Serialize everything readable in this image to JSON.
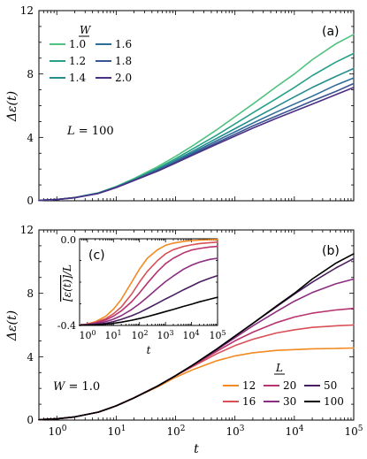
{
  "chart_data": [
    {
      "type": "line",
      "panel_label": "(a)",
      "xlabel": "",
      "ylabel": "Δε(t)",
      "xscale": "log",
      "xlim": [
        0.5,
        100000
      ],
      "ylim": [
        0,
        12
      ],
      "xticks": [
        "10^0",
        "10^1",
        "10^2",
        "10^3",
        "10^4",
        "10^5"
      ],
      "xtick_labels_shown": false,
      "yticks": [
        "0",
        "4",
        "8",
        "12"
      ],
      "annotation": "L = 100",
      "legend_title": "W",
      "legend_position": "top-left",
      "x": [
        0.5,
        1,
        2,
        5,
        10,
        20,
        50,
        100,
        200,
        500,
        1000,
        2000,
        5000,
        10000,
        20000,
        50000,
        100000
      ],
      "series": [
        {
          "name": "1.0",
          "color": "#4fc27f",
          "values": [
            0.03,
            0.08,
            0.2,
            0.5,
            0.9,
            1.4,
            2.15,
            2.8,
            3.5,
            4.5,
            5.3,
            6.1,
            7.2,
            8.0,
            8.9,
            9.9,
            10.5
          ]
        },
        {
          "name": "1.2",
          "color": "#27a088",
          "values": [
            0.03,
            0.08,
            0.2,
            0.49,
            0.88,
            1.35,
            2.05,
            2.65,
            3.3,
            4.15,
            4.85,
            5.55,
            6.45,
            7.15,
            7.9,
            8.75,
            9.3
          ]
        },
        {
          "name": "1.4",
          "color": "#268d8f",
          "values": [
            0.03,
            0.08,
            0.2,
            0.48,
            0.86,
            1.32,
            1.98,
            2.55,
            3.15,
            3.95,
            4.55,
            5.15,
            5.95,
            6.55,
            7.15,
            7.85,
            8.35
          ]
        },
        {
          "name": "1.6",
          "color": "#2e6d9a",
          "values": [
            0.03,
            0.08,
            0.19,
            0.47,
            0.85,
            1.3,
            1.93,
            2.48,
            3.05,
            3.8,
            4.35,
            4.9,
            5.6,
            6.1,
            6.6,
            7.3,
            7.75
          ]
        },
        {
          "name": "1.8",
          "color": "#3a5593",
          "values": [
            0.03,
            0.08,
            0.19,
            0.47,
            0.84,
            1.29,
            1.9,
            2.42,
            2.97,
            3.68,
            4.2,
            4.72,
            5.35,
            5.82,
            6.3,
            6.9,
            7.4
          ]
        },
        {
          "name": "2.0",
          "color": "#4b2f85",
          "values": [
            0.03,
            0.08,
            0.19,
            0.46,
            0.83,
            1.28,
            1.87,
            2.38,
            2.9,
            3.58,
            4.08,
            4.58,
            5.2,
            5.65,
            6.1,
            6.7,
            7.15
          ]
        }
      ]
    },
    {
      "type": "line",
      "panel_label": "(b)",
      "xlabel": "t",
      "ylabel": "Δε(t)",
      "xscale": "log",
      "xlim": [
        0.5,
        100000
      ],
      "ylim": [
        0,
        12
      ],
      "xticks": [
        "10^0",
        "10^1",
        "10^2",
        "10^3",
        "10^4",
        "10^5"
      ],
      "yticks": [
        "0",
        "4",
        "8",
        "12"
      ],
      "annotation": "W = 1.0",
      "legend_title": "L",
      "legend_position": "bottom-right",
      "x": [
        0.5,
        1,
        2,
        5,
        10,
        20,
        50,
        100,
        200,
        500,
        1000,
        2000,
        5000,
        10000,
        20000,
        50000,
        100000
      ],
      "series": [
        {
          "name": "12",
          "color": "#f28a21",
          "values": [
            0.03,
            0.08,
            0.2,
            0.5,
            0.9,
            1.4,
            2.1,
            2.7,
            3.2,
            3.75,
            4.05,
            4.25,
            4.4,
            4.45,
            4.5,
            4.52,
            4.55
          ]
        },
        {
          "name": "16",
          "color": "#d84f56",
          "values": [
            0.03,
            0.08,
            0.2,
            0.5,
            0.9,
            1.4,
            2.15,
            2.8,
            3.4,
            4.2,
            4.7,
            5.1,
            5.5,
            5.7,
            5.85,
            5.95,
            6.0
          ]
        },
        {
          "name": "20",
          "color": "#b83470",
          "values": [
            0.03,
            0.08,
            0.2,
            0.5,
            0.9,
            1.4,
            2.15,
            2.8,
            3.45,
            4.35,
            5.0,
            5.55,
            6.15,
            6.5,
            6.75,
            6.95,
            7.05
          ]
        },
        {
          "name": "30",
          "color": "#8c2e80",
          "values": [
            0.03,
            0.08,
            0.2,
            0.5,
            0.9,
            1.4,
            2.15,
            2.8,
            3.5,
            4.45,
            5.2,
            5.95,
            6.85,
            7.5,
            8.05,
            8.6,
            8.9
          ]
        },
        {
          "name": "50",
          "color": "#4a1d5e",
          "values": [
            0.03,
            0.08,
            0.2,
            0.5,
            0.9,
            1.4,
            2.15,
            2.8,
            3.5,
            4.5,
            5.3,
            6.1,
            7.15,
            7.95,
            8.7,
            9.6,
            10.2
          ]
        },
        {
          "name": "100",
          "color": "#000000",
          "values": [
            0.03,
            0.08,
            0.2,
            0.5,
            0.9,
            1.4,
            2.15,
            2.8,
            3.5,
            4.5,
            5.3,
            6.1,
            7.2,
            8.0,
            8.9,
            9.9,
            10.5
          ]
        }
      ]
    },
    {
      "type": "line",
      "panel_label": "(c)",
      "xlabel": "t",
      "ylabel": "[ε(t)]/L",
      "xscale": "log",
      "xlim": [
        0.5,
        100000
      ],
      "ylim": [
        -0.4,
        0.0
      ],
      "xticks": [
        "10^0",
        "10^1",
        "10^2",
        "10^3",
        "10^4",
        "10^5"
      ],
      "yticks": [
        "0.0",
        "-0.4"
      ],
      "x": [
        0.5,
        1,
        2,
        5,
        10,
        20,
        50,
        100,
        200,
        500,
        1000,
        2000,
        5000,
        10000,
        20000,
        50000,
        100000
      ],
      "series": [
        {
          "name": "12",
          "color": "#f28a21",
          "values": [
            -0.398,
            -0.393,
            -0.383,
            -0.358,
            -0.325,
            -0.28,
            -0.2,
            -0.14,
            -0.09,
            -0.05,
            -0.03,
            -0.02,
            -0.012,
            -0.008,
            -0.006,
            -0.004,
            -0.003
          ]
        },
        {
          "name": "16",
          "color": "#d84f56",
          "values": [
            -0.398,
            -0.394,
            -0.386,
            -0.369,
            -0.346,
            -0.315,
            -0.255,
            -0.2,
            -0.15,
            -0.1,
            -0.07,
            -0.05,
            -0.035,
            -0.028,
            -0.022,
            -0.018,
            -0.015
          ]
        },
        {
          "name": "20",
          "color": "#b83470",
          "values": [
            -0.398,
            -0.395,
            -0.389,
            -0.375,
            -0.357,
            -0.333,
            -0.29,
            -0.25,
            -0.205,
            -0.15,
            -0.115,
            -0.09,
            -0.065,
            -0.052,
            -0.045,
            -0.038,
            -0.035
          ]
        },
        {
          "name": "30",
          "color": "#8c2e80",
          "values": [
            -0.398,
            -0.396,
            -0.392,
            -0.383,
            -0.371,
            -0.355,
            -0.326,
            -0.3,
            -0.27,
            -0.228,
            -0.198,
            -0.172,
            -0.14,
            -0.122,
            -0.108,
            -0.095,
            -0.09
          ]
        },
        {
          "name": "50",
          "color": "#4a1d5e",
          "values": [
            -0.399,
            -0.397,
            -0.395,
            -0.39,
            -0.382,
            -0.372,
            -0.355,
            -0.34,
            -0.322,
            -0.297,
            -0.278,
            -0.26,
            -0.235,
            -0.218,
            -0.2,
            -0.182,
            -0.17
          ]
        },
        {
          "name": "100",
          "color": "#000000",
          "values": [
            -0.399,
            -0.398,
            -0.397,
            -0.394,
            -0.39,
            -0.385,
            -0.376,
            -0.368,
            -0.359,
            -0.346,
            -0.336,
            -0.326,
            -0.312,
            -0.302,
            -0.291,
            -0.279,
            -0.27
          ]
        }
      ]
    }
  ]
}
